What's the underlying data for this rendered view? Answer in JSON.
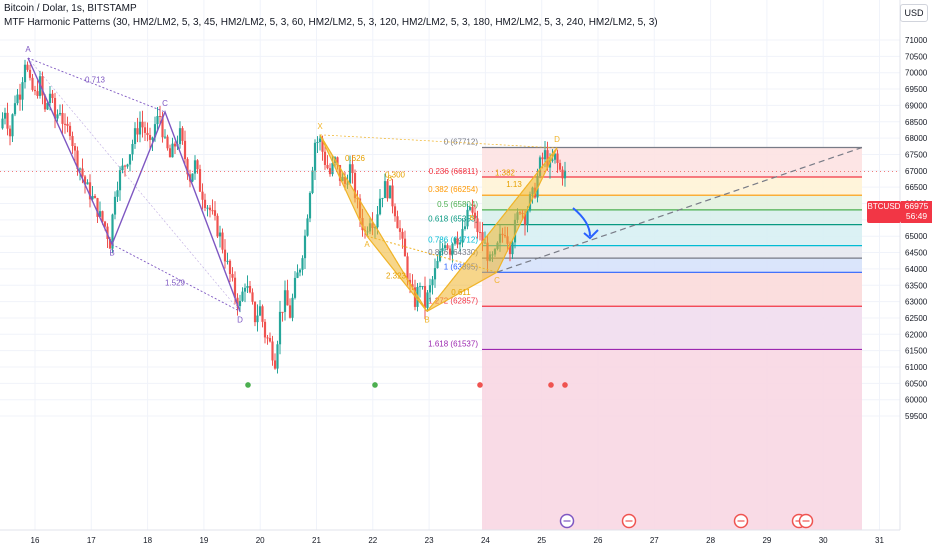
{
  "header": {
    "symbol_line": "Bitcoin / Dolar, 1s, BITSTAMP",
    "indicator_line": "MTF Harmonic Patterns (30, HM2/LM2, 5, 3, 45, HM2/LM2, 5, 3, 60, HM2/LM2, 5, 3, 120, HM2/LM2, 5, 3, 180, HM2/LM2, 5, 3, 240, HM2/LM2, 5, 3)"
  },
  "currency_button": "USD",
  "price_tag": {
    "symbol": "BTCUSD",
    "price": "66975",
    "countdown": "56:49"
  },
  "colors": {
    "up": "#26a69a",
    "down": "#ef5350",
    "pattern_purple": "#7e57c2",
    "pattern_gold": "#f0b429",
    "trendline": "#787b86",
    "arrow": "#2962ff"
  },
  "chart_data": {
    "type": "candlestick",
    "y_ticks": [
      "71000",
      "70500",
      "70000",
      "69500",
      "69000",
      "68500",
      "68000",
      "67500",
      "67000",
      "66500",
      "66000",
      "65500",
      "65000",
      "64500",
      "64000",
      "63500",
      "63000",
      "62500",
      "62000",
      "61500",
      "61000",
      "60500",
      "60000",
      "59500"
    ],
    "ylim": [
      59300,
      71300
    ],
    "x_ticks": [
      "16",
      "17",
      "18",
      "19",
      "20",
      "21",
      "22",
      "23",
      "24",
      "25",
      "26",
      "27",
      "28",
      "29",
      "30",
      "31"
    ],
    "price_path": [
      [
        0,
        68300
      ],
      [
        5,
        68900
      ],
      [
        10,
        68100
      ],
      [
        15,
        69200
      ],
      [
        20,
        69400
      ],
      [
        25,
        70400
      ],
      [
        30,
        69600
      ],
      [
        35,
        69300
      ],
      [
        40,
        69700
      ],
      [
        45,
        68800
      ],
      [
        50,
        69400
      ],
      [
        55,
        68600
      ],
      [
        60,
        68900
      ],
      [
        65,
        68200
      ],
      [
        70,
        68300
      ],
      [
        75,
        67500
      ],
      [
        80,
        67100
      ],
      [
        85,
        66600
      ],
      [
        90,
        66300
      ],
      [
        95,
        66000
      ],
      [
        100,
        65600
      ],
      [
        105,
        65300
      ],
      [
        110,
        64800
      ],
      [
        115,
        66400
      ],
      [
        120,
        66900
      ],
      [
        125,
        67200
      ],
      [
        130,
        67600
      ],
      [
        135,
        68100
      ],
      [
        140,
        68500
      ],
      [
        145,
        68200
      ],
      [
        150,
        67700
      ],
      [
        155,
        68400
      ],
      [
        160,
        68700
      ],
      [
        165,
        67800
      ],
      [
        170,
        67400
      ],
      [
        175,
        67800
      ],
      [
        180,
        68100
      ],
      [
        185,
        67400
      ],
      [
        190,
        66800
      ],
      [
        195,
        67200
      ],
      [
        200,
        66500
      ],
      [
        205,
        66100
      ],
      [
        210,
        65800
      ],
      [
        215,
        65400
      ],
      [
        220,
        65000
      ],
      [
        225,
        64400
      ],
      [
        230,
        63800
      ],
      [
        235,
        63200
      ],
      [
        240,
        62900
      ],
      [
        245,
        63600
      ],
      [
        250,
        63100
      ],
      [
        255,
        62500
      ],
      [
        260,
        62800
      ],
      [
        265,
        62000
      ],
      [
        270,
        61700
      ],
      [
        275,
        61200
      ],
      [
        280,
        62600
      ],
      [
        285,
        63100
      ],
      [
        290,
        62600
      ],
      [
        295,
        63500
      ],
      [
        300,
        64100
      ],
      [
        305,
        65000
      ],
      [
        310,
        66500
      ],
      [
        315,
        67900
      ],
      [
        320,
        67900
      ],
      [
        325,
        67300
      ],
      [
        330,
        66900
      ],
      [
        335,
        67300
      ],
      [
        340,
        66800
      ],
      [
        345,
        66600
      ],
      [
        350,
        67100
      ],
      [
        355,
        66300
      ],
      [
        360,
        65600
      ],
      [
        365,
        65100
      ],
      [
        370,
        65600
      ],
      [
        375,
        65400
      ],
      [
        380,
        66200
      ],
      [
        385,
        66500
      ],
      [
        390,
        66300
      ],
      [
        395,
        65800
      ],
      [
        400,
        65100
      ],
      [
        405,
        64300
      ],
      [
        410,
        63400
      ],
      [
        415,
        63000
      ],
      [
        420,
        63600
      ],
      [
        425,
        62900
      ],
      [
        430,
        63400
      ],
      [
        435,
        63900
      ],
      [
        440,
        64400
      ],
      [
        445,
        64900
      ],
      [
        450,
        64600
      ],
      [
        455,
        65100
      ],
      [
        460,
        64800
      ],
      [
        465,
        65300
      ],
      [
        470,
        65900
      ],
      [
        475,
        65400
      ],
      [
        480,
        65000
      ],
      [
        485,
        64700
      ],
      [
        490,
        64200
      ],
      [
        495,
        64400
      ],
      [
        500,
        64900
      ],
      [
        505,
        65200
      ],
      [
        510,
        64700
      ],
      [
        515,
        65300
      ],
      [
        520,
        65900
      ],
      [
        525,
        65600
      ],
      [
        530,
        66100
      ],
      [
        535,
        66400
      ],
      [
        540,
        67200
      ],
      [
        545,
        67500
      ],
      [
        550,
        67100
      ],
      [
        555,
        67400
      ],
      [
        560,
        67000
      ],
      [
        565,
        66900
      ]
    ],
    "last_price": 66975,
    "fib_levels": [
      {
        "label": "0 (67712)",
        "value": 67712,
        "color": "#787b86"
      },
      {
        "label": "0.236 (66811)",
        "value": 66811,
        "color": "#f23645"
      },
      {
        "label": "0.382 (66254)",
        "value": 66254,
        "color": "#ff9800"
      },
      {
        "label": "0.5 (65804)",
        "value": 65804,
        "color": "#4caf50"
      },
      {
        "label": "0.618 (65353)",
        "value": 65353,
        "color": "#089981"
      },
      {
        "label": "0.786 (64712)",
        "value": 64712,
        "color": "#00bcd4"
      },
      {
        "label": "0.886 (64330)",
        "value": 64330,
        "color": "#787b86"
      },
      {
        "label": "1 (63895)",
        "value": 63895,
        "color": "#2962ff"
      },
      {
        "label": "1.272 (62857)",
        "value": 62857,
        "color": "#f23645"
      },
      {
        "label": "1.618 (61537)",
        "value": 61537,
        "color": "#9c27b0"
      }
    ],
    "purple_pattern": {
      "points": [
        [
          "A",
          28,
          70450
        ],
        [
          "B",
          112,
          64750
        ],
        [
          "C",
          165,
          68800
        ],
        [
          "D",
          240,
          62700
        ]
      ],
      "ratios": [
        [
          "0.713",
          95,
          69700
        ],
        [
          "1.529",
          175,
          63500
        ]
      ]
    },
    "gold_pattern": {
      "points": [
        [
          "X",
          320,
          68100
        ],
        [
          "A",
          367,
          65000
        ],
        [
          "B",
          427,
          62700
        ],
        [
          "C",
          497,
          63900
        ],
        [
          "D",
          557,
          67700
        ]
      ],
      "ratios": [
        [
          "0.626",
          355,
          67300
        ],
        [
          "0.300",
          395,
          66800
        ],
        [
          "2.323",
          396,
          63700
        ],
        [
          "0.611",
          461,
          63200
        ],
        [
          "1.382",
          505,
          66850
        ],
        [
          "1.13",
          514,
          66500
        ]
      ],
      "extra_labels": [
        [
          "B",
          390,
          66700
        ],
        [
          "B",
          472,
          65500
        ]
      ]
    },
    "dots": [
      [
        248,
        60450,
        "#4caf50"
      ],
      [
        375,
        60450,
        "#4caf50"
      ],
      [
        480,
        60450,
        "#ef5350"
      ],
      [
        551,
        60450,
        "#ef5350"
      ],
      [
        565,
        60450,
        "#ef5350"
      ]
    ]
  }
}
